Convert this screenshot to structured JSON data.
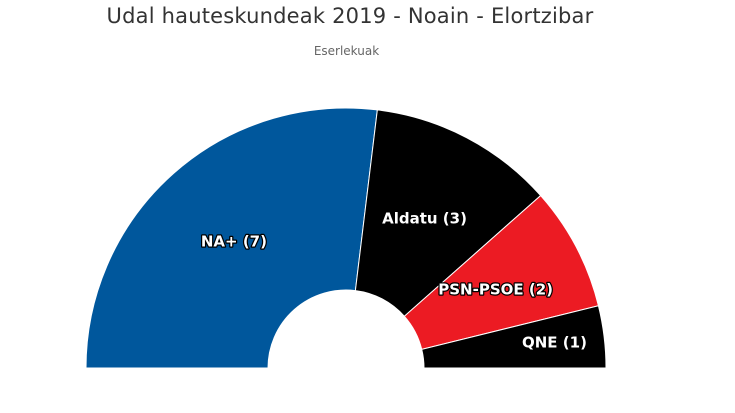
{
  "chart_data": {
    "type": "pie",
    "subtype": "parliament-semicircle",
    "title": "Udal hauteskundeak 2019 - Noain - Elortzibar",
    "subtitle": "Eserlekuak",
    "series": [
      {
        "name": "NA+",
        "value": 7,
        "label": "NA+ (7)",
        "color": "#00579c"
      },
      {
        "name": "Aldatu",
        "value": 3,
        "label": "Aldatu (3)",
        "color": "#000000"
      },
      {
        "name": "PSN-PSOE",
        "value": 2,
        "label": "PSN-PSOE (2)",
        "color": "#ec1b23"
      },
      {
        "name": "QNE",
        "value": 1,
        "label": "QNE (1)",
        "color": "#000000"
      }
    ]
  }
}
